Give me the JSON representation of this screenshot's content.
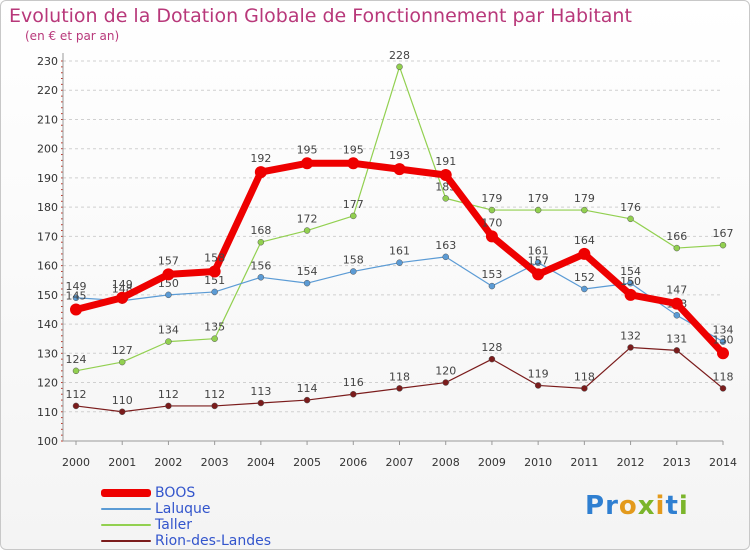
{
  "title": "Evolution de la Dotation Globale de Fonctionnement par Habitant",
  "subtitle": "(en € et par an)",
  "logo_text": "Proxiti",
  "colors": {
    "title": "#b8387a",
    "legend_text": "#3355cc",
    "BOOS": "#ee0000",
    "Laluque": "#5b9bd5",
    "Taller": "#92d050",
    "Rion-des-Landes": "#7b1c1c"
  },
  "chart_data": {
    "type": "line",
    "title": "Evolution de la Dotation Globale de Fonctionnement par Habitant",
    "subtitle": "(en € et par an)",
    "xlabel": "",
    "ylabel": "",
    "x": [
      "2000",
      "2001",
      "2002",
      "2003",
      "2004",
      "2005",
      "2006",
      "2007",
      "2008",
      "2009",
      "2010",
      "2011",
      "2012",
      "2013",
      "2014"
    ],
    "ylim": [
      100,
      230
    ],
    "yticks": [
      100,
      110,
      120,
      130,
      140,
      150,
      160,
      170,
      180,
      190,
      200,
      210,
      220,
      230
    ],
    "grid": "horizontal dashed",
    "legend_position": "bottom-left",
    "series": [
      {
        "name": "BOOS",
        "values": [
          145,
          149,
          157,
          158,
          192,
          195,
          195,
          193,
          191,
          170,
          157,
          164,
          150,
          147,
          130
        ]
      },
      {
        "name": "Laluque",
        "values": [
          149,
          148,
          150,
          151,
          156,
          154,
          158,
          161,
          163,
          153,
          161,
          152,
          154,
          143,
          134
        ]
      },
      {
        "name": "Taller",
        "values": [
          124,
          127,
          134,
          135,
          168,
          172,
          177,
          228,
          183,
          179,
          179,
          179,
          176,
          166,
          167
        ]
      },
      {
        "name": "Rion-des-Landes",
        "values": [
          112,
          110,
          112,
          112,
          113,
          114,
          116,
          118,
          120,
          128,
          119,
          118,
          132,
          131,
          118
        ]
      }
    ]
  }
}
